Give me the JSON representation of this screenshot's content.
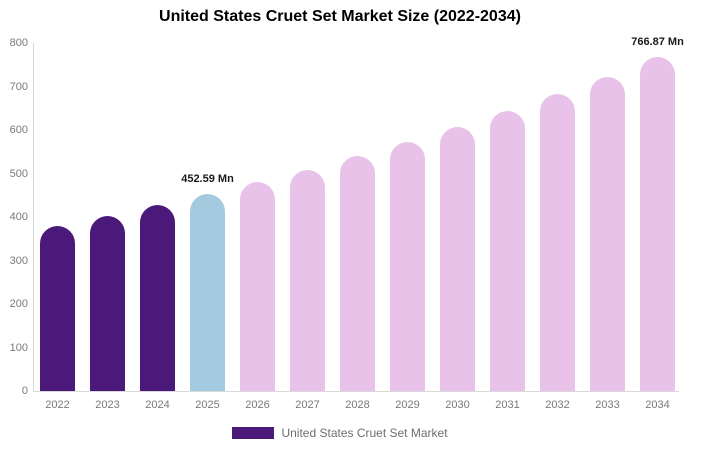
{
  "chart_data": {
    "type": "bar",
    "title": "United States Cruet Set Market Size (2022-2034)",
    "xlabel": "",
    "ylabel": "",
    "categories": [
      "2022",
      "2023",
      "2024",
      "2025",
      "2026",
      "2027",
      "2028",
      "2029",
      "2030",
      "2031",
      "2032",
      "2033",
      "2034"
    ],
    "values": [
      379.7,
      402.59,
      426.86,
      452.59,
      479.87,
      508.8,
      539.47,
      571.99,
      606.47,
      643.03,
      681.79,
      722.89,
      766.87
    ],
    "unit": "Mn",
    "ylim": [
      0,
      800
    ],
    "ytick_step": 100,
    "grid": false,
    "legend_position": "bottom",
    "bar_colors": [
      "#4B1979",
      "#4B1979",
      "#4B1979",
      "#A3CADF",
      "#E8C2E9",
      "#E8C2E9",
      "#E8C2E9",
      "#E8C2E9",
      "#E8C2E9",
      "#E8C2E9",
      "#E8C2E9",
      "#E8C2E9",
      "#E8C2E9"
    ],
    "annotations": [
      {
        "index": 3,
        "text": "452.59 Mn"
      },
      {
        "index": 12,
        "text": "766.87 Mn"
      }
    ]
  },
  "legend": {
    "label": "United States Cruet Set Market",
    "swatch_color": "#4B1979"
  },
  "colors": {
    "historical_bar": "#4B1979",
    "base_year_bar": "#A3CADF",
    "forecast_bar": "#E8C2E9",
    "axis_line": "#D9D9D9",
    "tick_text": "#7A7A7A",
    "legend_text": "#6E6E6E",
    "title_text": "#000000",
    "background": "#FFFFFF"
  }
}
